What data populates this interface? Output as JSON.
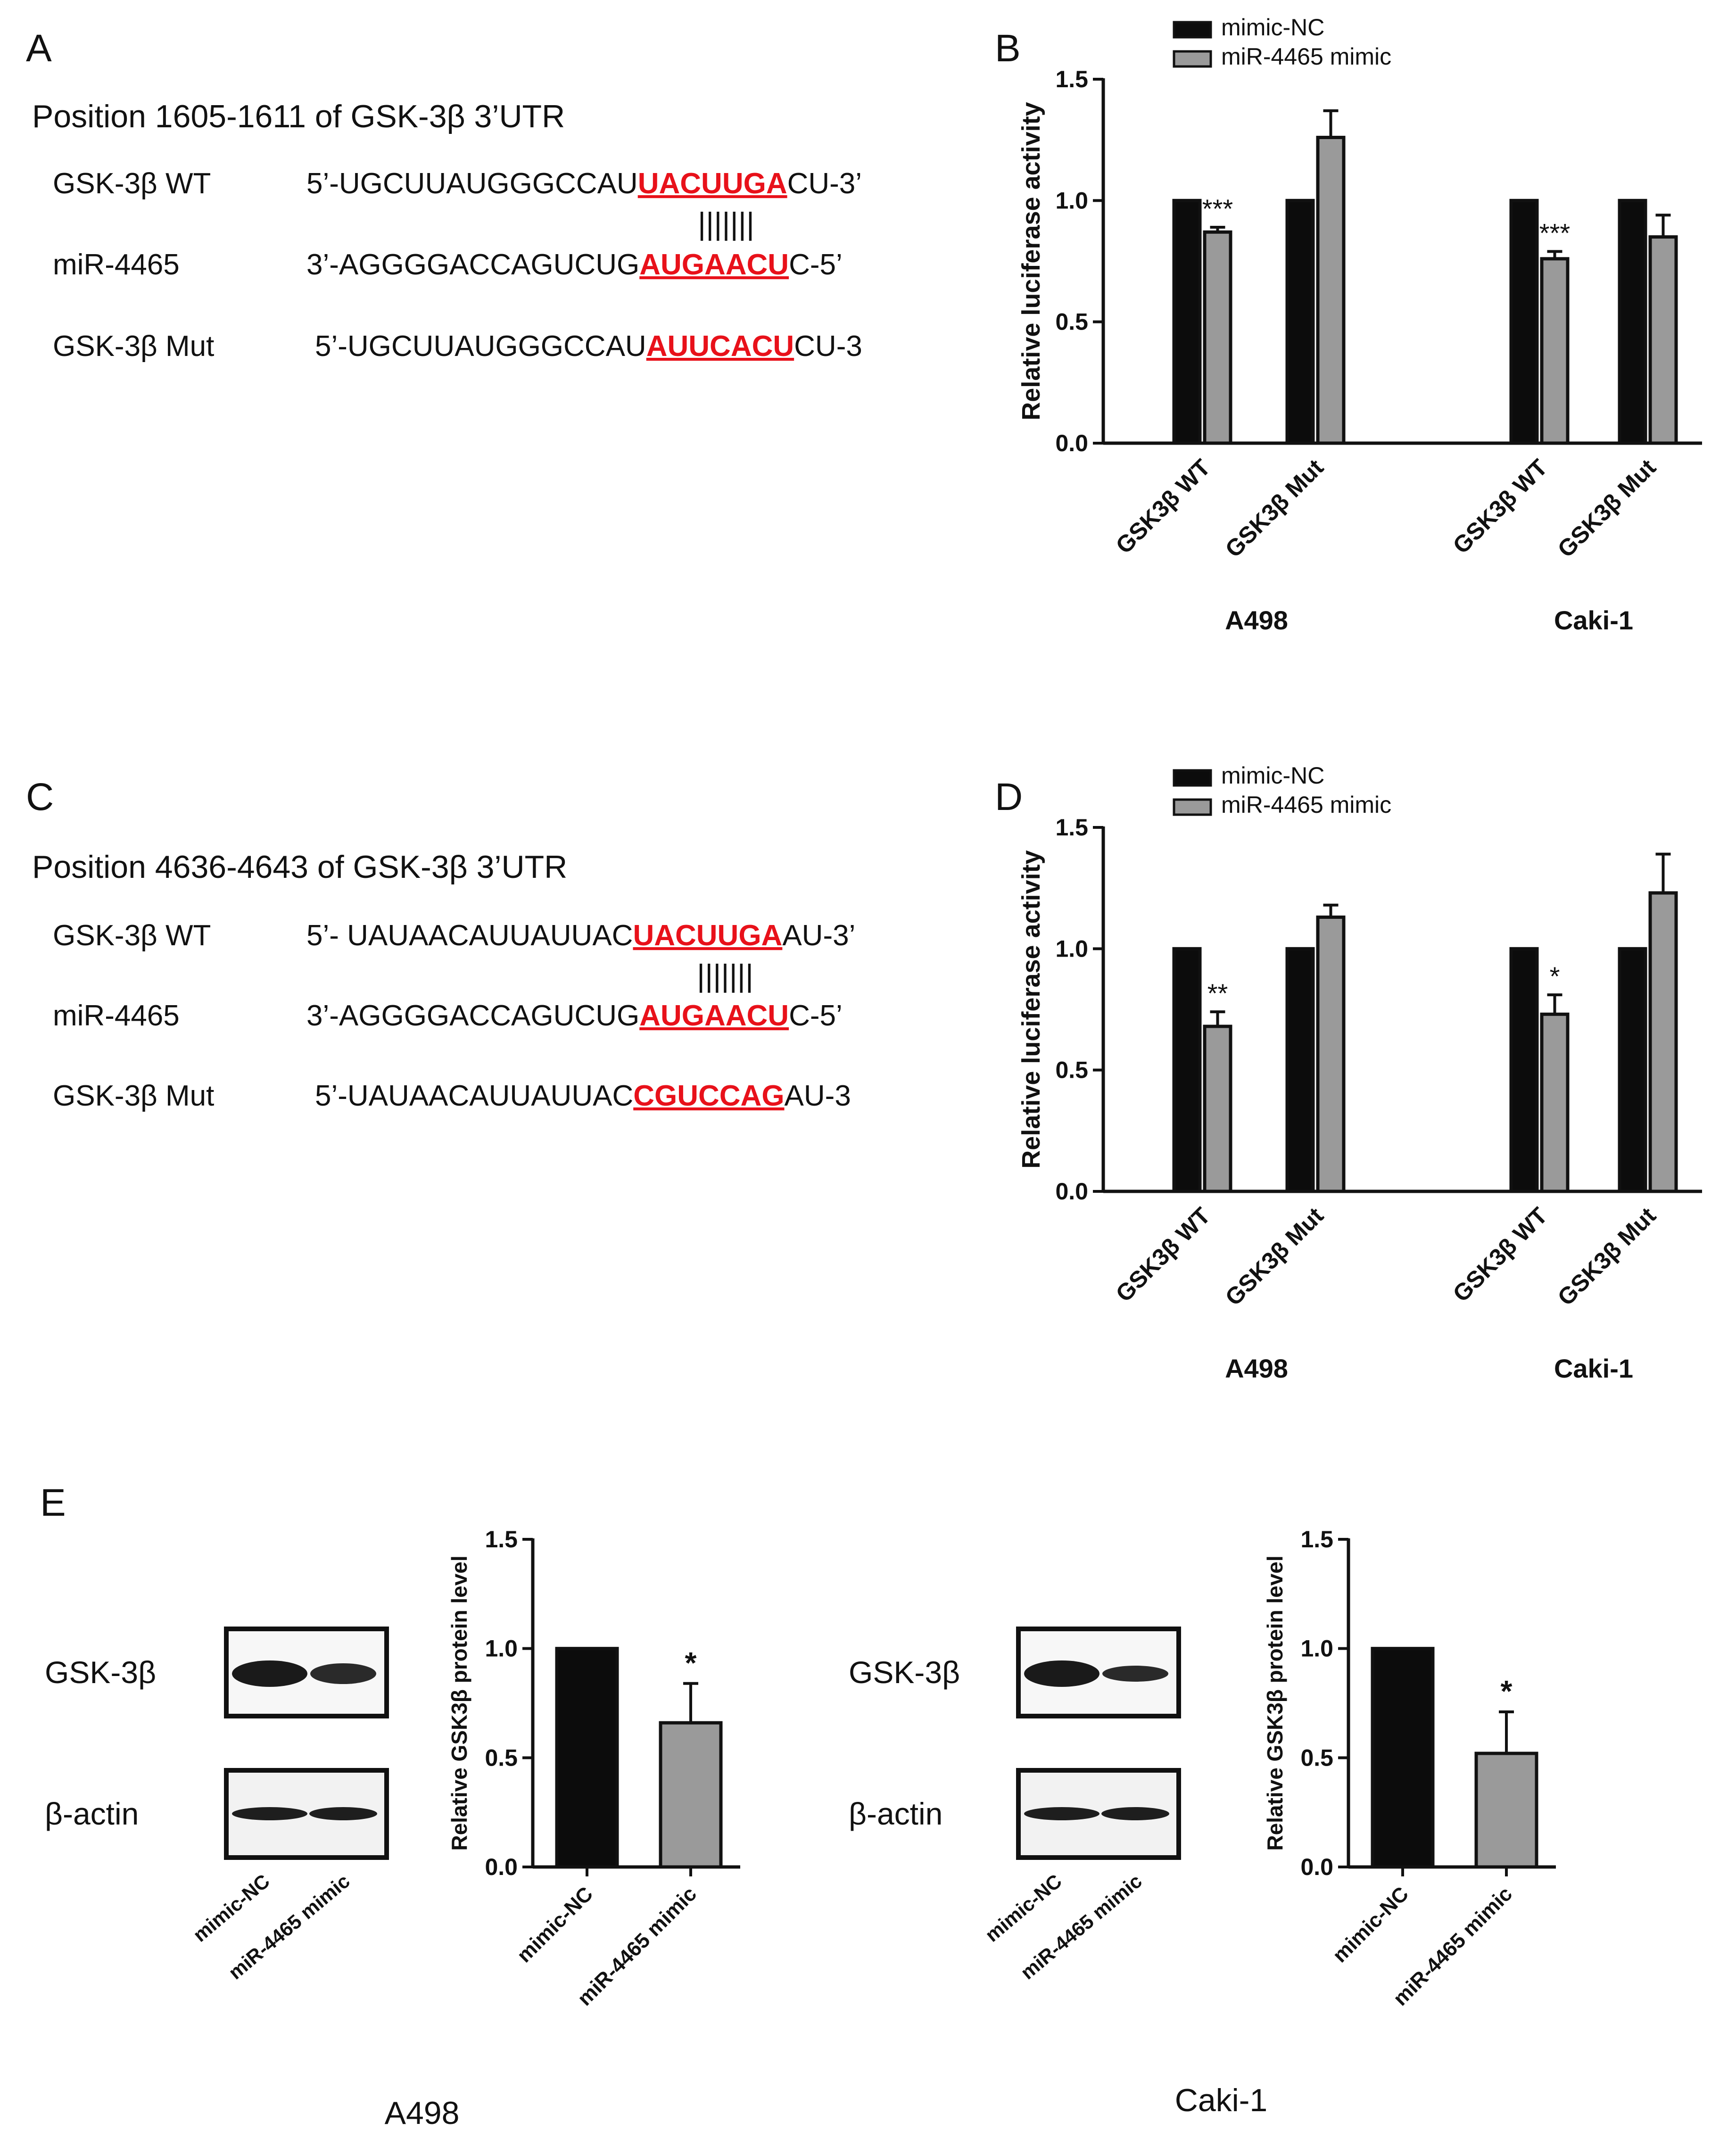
{
  "panels": {
    "A": {
      "letter": "A",
      "heading": "Position 1605-1611 of GSK-3β 3’UTR",
      "rows": [
        {
          "label": "GSK-3β WT",
          "pre": "5’-UGCUUAUGGGCCAU",
          "site": "UACUUGA",
          "post": "CU-3’"
        },
        {
          "label": "miR-4465",
          "pre": "3’-AGGGGACCAGUCUG",
          "site": "AUGAACU",
          "post": "C-5’"
        },
        {
          "label": "GSK-3β Mut",
          "pre": "5’-UGCUUAUGGGCCAU",
          "site": "AUUCACU",
          "post": "CU-3"
        }
      ],
      "pairing": "|||||||"
    },
    "C": {
      "letter": "C",
      "heading": "Position 4636-4643 of GSK-3β 3’UTR",
      "rows": [
        {
          "label": "GSK-3β WT",
          "pre": "5’- UAUAACAUUAUUAC",
          "site": "UACUUGA",
          "post": "AU-3’"
        },
        {
          "label": "miR-4465",
          "pre": "3’-AGGGGACCAGUCUG",
          "site": "AUGAACU",
          "post": "C-5’"
        },
        {
          "label": "GSK-3β Mut",
          "pre": "5’-UAUAACAUUAUUAC",
          "site": "CGUCCAG",
          "post": "AU-3"
        }
      ],
      "pairing": "|||||||"
    },
    "B": {
      "letter": "B"
    },
    "D": {
      "letter": "D"
    },
    "E": {
      "letter": "E",
      "blots": [
        {
          "cell": "A498",
          "bands": [
            "GSK-3β",
            "β-actin"
          ],
          "lanes": [
            "mimic-NC",
            "miR-4465 mimic"
          ]
        },
        {
          "cell": "Caki-1",
          "bands": [
            "GSK-3β",
            "β-actin"
          ],
          "lanes": [
            "mimic-NC",
            "miR-4465 mimic"
          ]
        }
      ]
    }
  },
  "colors": {
    "highlight": "#e8111a",
    "dark_bar": "#0c0c0c",
    "gray_bar": "#9a9a9a",
    "axis": "#111111"
  },
  "chart_data": [
    {
      "id": "B",
      "type": "bar",
      "ylabel": "Relative luciferase activity",
      "ylim": [
        0,
        1.5
      ],
      "yticks": [
        "0.0",
        "0.5",
        "1.0",
        "1.5"
      ],
      "legend": [
        "mimic-NC",
        "miR-4465 mimic"
      ],
      "legend_position": "top",
      "groups": [
        {
          "name": "A498",
          "categories": [
            "GSK3β WT",
            "GSK3β Mut"
          ]
        },
        {
          "name": "Caki-1",
          "categories": [
            "GSK3β WT",
            "GSK3β Mut"
          ]
        }
      ],
      "series": [
        {
          "name": "mimic-NC",
          "values": [
            1.0,
            1.0,
            1.0,
            1.0
          ],
          "errors": [
            0,
            0,
            0,
            0
          ]
        },
        {
          "name": "miR-4465 mimic",
          "values": [
            0.87,
            1.26,
            0.76,
            0.85
          ],
          "errors": [
            0.02,
            0.11,
            0.03,
            0.09
          ]
        }
      ],
      "significance": [
        "***",
        "",
        "***",
        ""
      ]
    },
    {
      "id": "D",
      "type": "bar",
      "ylabel": "Relative luciferase activity",
      "ylim": [
        0,
        1.5
      ],
      "yticks": [
        "0.0",
        "0.5",
        "1.0",
        "1.5"
      ],
      "legend": [
        "mimic-NC",
        "miR-4465 mimic"
      ],
      "legend_position": "top",
      "groups": [
        {
          "name": "A498",
          "categories": [
            "GSK3β WT",
            "GSK3β Mut"
          ]
        },
        {
          "name": "Caki-1",
          "categories": [
            "GSK3β WT",
            "GSK3β Mut"
          ]
        }
      ],
      "series": [
        {
          "name": "mimic-NC",
          "values": [
            1.0,
            1.0,
            1.0,
            1.0
          ],
          "errors": [
            0,
            0,
            0,
            0
          ]
        },
        {
          "name": "miR-4465 mimic",
          "values": [
            0.68,
            1.13,
            0.73,
            1.23
          ],
          "errors": [
            0.06,
            0.05,
            0.08,
            0.16
          ]
        }
      ],
      "significance": [
        "**",
        "",
        "*",
        ""
      ]
    },
    {
      "id": "E1",
      "type": "bar",
      "ylabel": "Relative GSK3β protein level",
      "ylim": [
        0,
        1.5
      ],
      "yticks": [
        "0.0",
        "0.5",
        "1.0",
        "1.5"
      ],
      "categories": [
        "mimic-NC",
        "miR-4465 mimic"
      ],
      "values": [
        1.0,
        0.66
      ],
      "errors": [
        0,
        0.18
      ],
      "significance": [
        "",
        "*"
      ]
    },
    {
      "id": "E2",
      "type": "bar",
      "ylabel": "Relative GSK3β protein level",
      "ylim": [
        0,
        1.5
      ],
      "yticks": [
        "0.0",
        "0.5",
        "1.0",
        "1.5"
      ],
      "categories": [
        "mimic-NC",
        "miR-4465 mimic"
      ],
      "values": [
        1.0,
        0.52
      ],
      "errors": [
        0,
        0.19
      ],
      "significance": [
        "",
        "*"
      ]
    }
  ]
}
